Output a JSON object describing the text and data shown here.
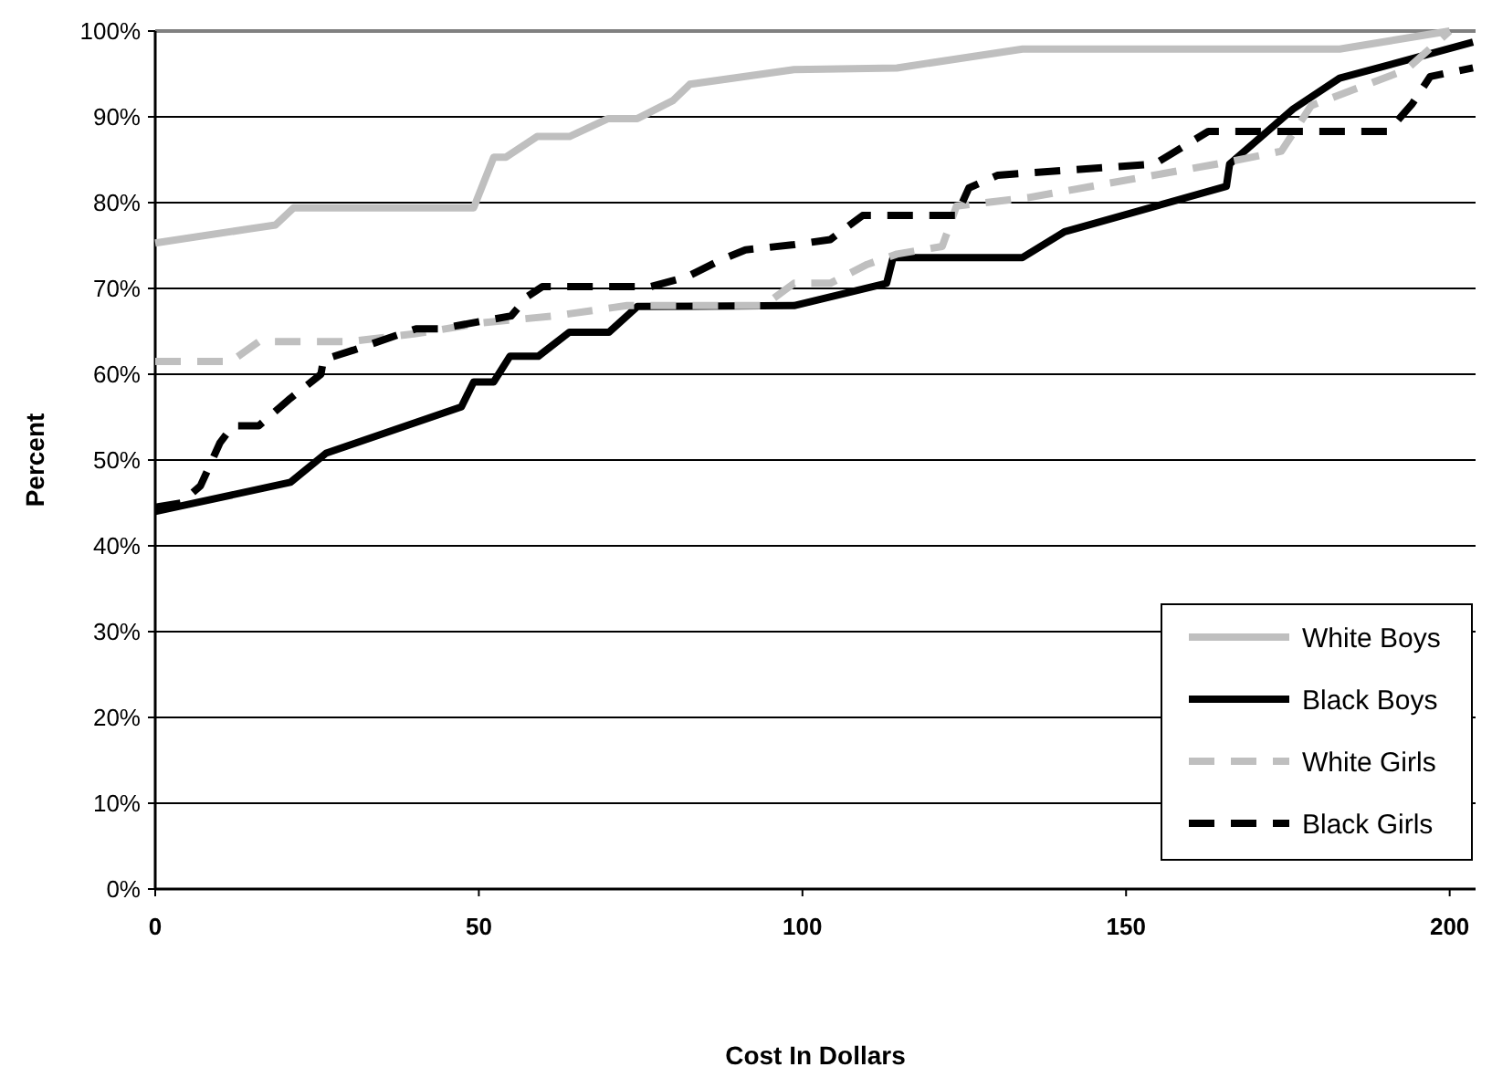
{
  "chart_data": {
    "type": "line",
    "xlabel": "Cost In Dollars",
    "ylabel": "Percent",
    "xlim": [
      0,
      204
    ],
    "xticks": [
      0,
      50,
      100,
      150,
      200
    ],
    "ylim": [
      0,
      100
    ],
    "yticks": [
      {
        "value": 0,
        "label": "0%"
      },
      {
        "value": 10,
        "label": "10%"
      },
      {
        "value": 20,
        "label": "20%"
      },
      {
        "value": 30,
        "label": "30%"
      },
      {
        "value": 40,
        "label": "40%"
      },
      {
        "value": 50,
        "label": "50%"
      },
      {
        "value": 60,
        "label": "60%"
      },
      {
        "value": 70,
        "label": "70%"
      },
      {
        "value": 80,
        "label": "80%"
      },
      {
        "value": 90,
        "label": "90%"
      },
      {
        "value": 100,
        "label": "100%"
      }
    ],
    "grid": "y",
    "legend": "bottom right",
    "series": [
      {
        "name": "White Boys",
        "color": "#bfbfbf",
        "line_style": "solid",
        "x": [
          0,
          18.6,
          21.4,
          49.2,
          52.3,
          54.2,
          59,
          64,
          70,
          74.5,
          80,
          82.6,
          98.7,
          114.6,
          134,
          183,
          200
        ],
        "values": [
          75.3,
          77.4,
          79.4,
          79.4,
          85.3,
          85.3,
          87.7,
          87.7,
          89.8,
          89.8,
          91.9,
          93.8,
          95.5,
          95.7,
          97.9,
          97.9,
          100
        ]
      },
      {
        "name": "Black Boys",
        "color": "#000000",
        "line_style": "solid",
        "x": [
          0,
          20.9,
          26.4,
          47.3,
          49.2,
          52.3,
          54.8,
          59.2,
          64,
          70.1,
          74.5,
          98.7,
          113,
          114,
          134,
          140.5,
          165.5,
          166,
          175.8,
          183,
          203.6
        ],
        "values": [
          44,
          47.4,
          50.8,
          56.2,
          59.1,
          59.1,
          62.1,
          62.1,
          64.9,
          64.9,
          67.9,
          68,
          70.6,
          73.6,
          73.6,
          76.6,
          81.9,
          84.5,
          90.9,
          94.5,
          98.7
        ]
      },
      {
        "name": "White Girls",
        "color": "#bfbfbf",
        "line_style": "dashed",
        "x": [
          0,
          11.7,
          16,
          30,
          40,
          50.6,
          61.7,
          72.9,
          94,
          98.7,
          104.3,
          110,
          114.6,
          121.6,
          123.8,
          135,
          165.5,
          174,
          178.6,
          193.3,
          200
        ],
        "values": [
          61.5,
          61.5,
          63.8,
          63.8,
          64.7,
          66,
          66.8,
          68,
          68,
          70.6,
          70.6,
          72.8,
          74,
          74.9,
          79.6,
          80.6,
          84.7,
          86,
          91.3,
          95.5,
          100
        ]
      },
      {
        "name": "Black Girls",
        "color": "#000000",
        "line_style": "dashed",
        "x": [
          0,
          4,
          7,
          10,
          12,
          16,
          20.9,
          25.6,
          26,
          30.6,
          40.3,
          44,
          55,
          57.6,
          59.8,
          76.5,
          82,
          87.6,
          91.2,
          98.7,
          104.3,
          109.3,
          123.8,
          125.7,
          130.2,
          154.4,
          162.7,
          190.5,
          194.2,
          197,
          203.6
        ],
        "values": [
          44.5,
          45,
          47,
          52,
          54,
          54,
          57.2,
          60,
          61.7,
          62.8,
          65.3,
          65.3,
          66.8,
          69.1,
          70.2,
          70.2,
          71.3,
          73.4,
          74.5,
          75.1,
          75.7,
          78.5,
          78.5,
          81.7,
          83.2,
          84.5,
          88.3,
          88.3,
          91.5,
          94.7,
          95.7
        ]
      }
    ]
  }
}
